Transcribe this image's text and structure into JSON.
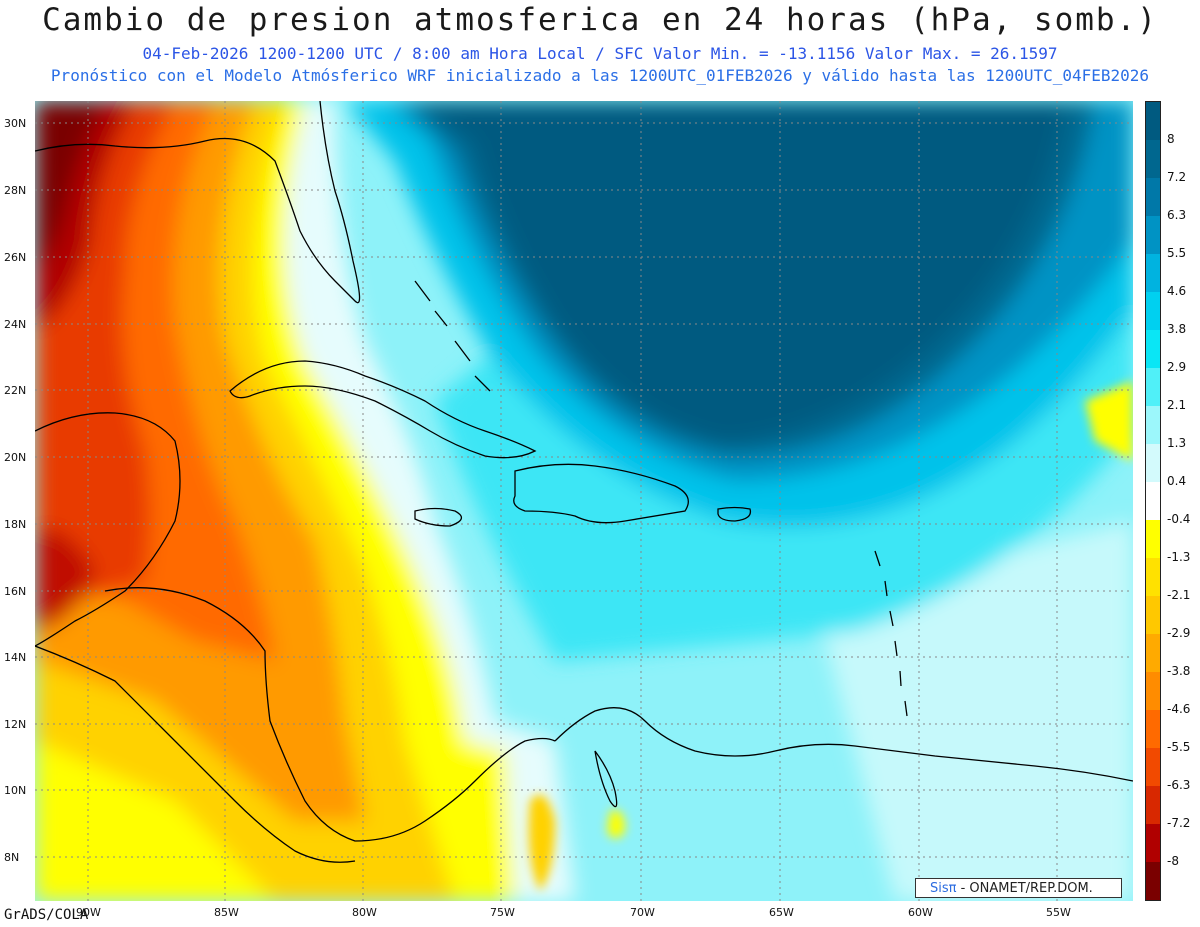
{
  "header": {
    "title": "Cambio de presion atmosferica en 24 horas (hPa, somb.)",
    "subtitle": "04-Feb-2026   1200-1200 UTC / 8:00 am Hora Local / SFC   Valor Min. = -13.1156  Valor Max. = 26.1597",
    "note": "Pronóstico con el Modelo Atmósferico WRF inicializado a las 1200UTC_01FEB2026 y válido hasta las  1200UTC_04FEB2026"
  },
  "map": {
    "lat_labels": [
      "30N",
      "28N",
      "26N",
      "24N",
      "22N",
      "20N",
      "18N",
      "16N",
      "14N",
      "12N",
      "10N",
      "8N"
    ],
    "lon_labels": [
      "90W",
      "85W",
      "80W",
      "75W",
      "70W",
      "65W",
      "60W",
      "55W"
    ]
  },
  "legend": {
    "labels": [
      "8",
      "7.2",
      "6.3",
      "5.5",
      "4.6",
      "3.8",
      "2.9",
      "2.1",
      "1.3",
      "0.4",
      "-0.4",
      "-1.3",
      "-2.1",
      "-2.9",
      "-3.8",
      "-4.6",
      "-5.5",
      "-6.3",
      "-7.2",
      "-8"
    ],
    "colors": [
      "#005a80",
      "#00678f",
      "#0078a8",
      "#0093c4",
      "#00b3e0",
      "#00d0f0",
      "#0ae6f5",
      "#50f0f8",
      "#9cf7fb",
      "#d3fafc",
      "#ffffff",
      "#ffff00",
      "#ffe100",
      "#ffc800",
      "#ffaa00",
      "#ff8c00",
      "#ff6a00",
      "#f24a00",
      "#d82800",
      "#b00000",
      "#7a0000"
    ]
  },
  "footer": {
    "credit": "GrADS/COLA",
    "logo_sis": "Sisπ",
    "logo_text": " - ONAMET/REP.DOM."
  }
}
